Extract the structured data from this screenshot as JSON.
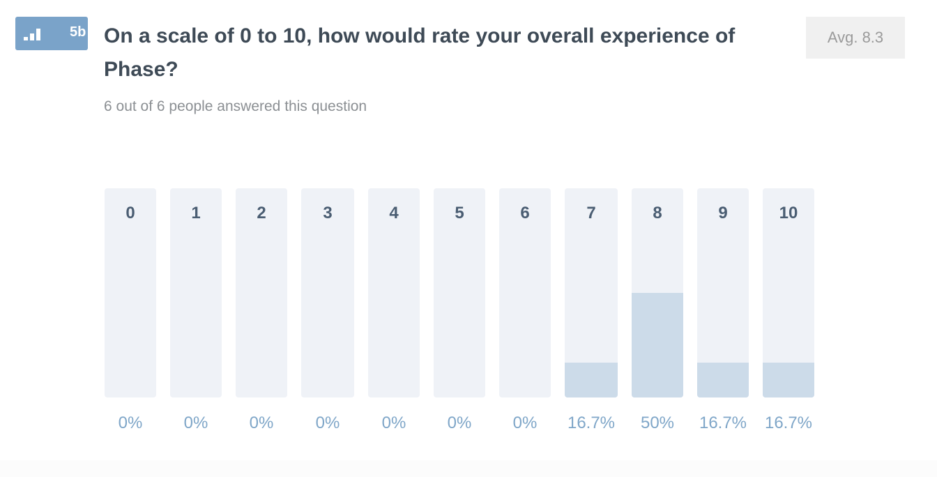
{
  "question": {
    "badge_number": "5b",
    "badge_icon": "bar-chart-icon",
    "title": "On a scale of 0 to 10, how would rate your overall experience of Phase?",
    "answered_text": "6 out of 6 people answered this question",
    "average_label": "Avg. 8.3"
  },
  "colors": {
    "badge": "#7aa3c9",
    "column_bg": "#eff2f7",
    "column_fill": "#ccdbe9",
    "percent_text": "#7fa6c8",
    "label_text": "#4a5d72"
  },
  "chart_data": {
    "type": "bar",
    "categories": [
      "0",
      "1",
      "2",
      "3",
      "4",
      "5",
      "6",
      "7",
      "8",
      "9",
      "10"
    ],
    "values": [
      0,
      0,
      0,
      0,
      0,
      0,
      0,
      16.7,
      50,
      16.7,
      16.7
    ],
    "value_labels": [
      "0%",
      "0%",
      "0%",
      "0%",
      "0%",
      "0%",
      "0%",
      "16.7%",
      "50%",
      "16.7%",
      "16.7%"
    ],
    "ylim": [
      0,
      100
    ],
    "grid": false
  }
}
